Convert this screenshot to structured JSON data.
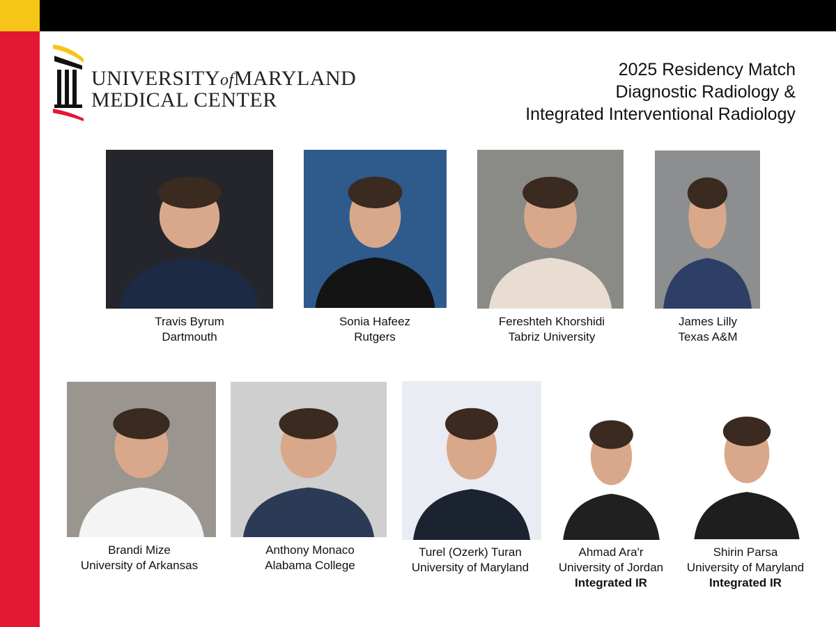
{
  "header": {
    "logo": {
      "university": "UNIVERSITY",
      "of": "of",
      "maryland": "MARYLAND",
      "medical_center": "MEDICAL CENTER"
    },
    "title": [
      "2025 Residency Match",
      "Diagnostic Radiology &",
      "Integrated Interventional Radiology"
    ]
  },
  "people": [
    {
      "name": "Travis Byrum",
      "school": "Dartmouth"
    },
    {
      "name": "Sonia Hafeez",
      "school": "Rutgers"
    },
    {
      "name": "Fereshteh Khorshidi",
      "school": "Tabriz University"
    },
    {
      "name": "James Lilly",
      "school": "Texas A&M"
    },
    {
      "name": "Brandi Mize",
      "school": "University of Arkansas"
    },
    {
      "name": "Anthony Monaco",
      "school": "Alabama College"
    },
    {
      "name": "Turel (Ozerk) Turan",
      "school": "University of Maryland"
    },
    {
      "name": "Ahmad Ara'r",
      "school": "University of Jordan",
      "program": "Integrated IR"
    },
    {
      "name": "Shirin Parsa",
      "school": "University of Maryland",
      "program": "Integrated IR"
    }
  ]
}
